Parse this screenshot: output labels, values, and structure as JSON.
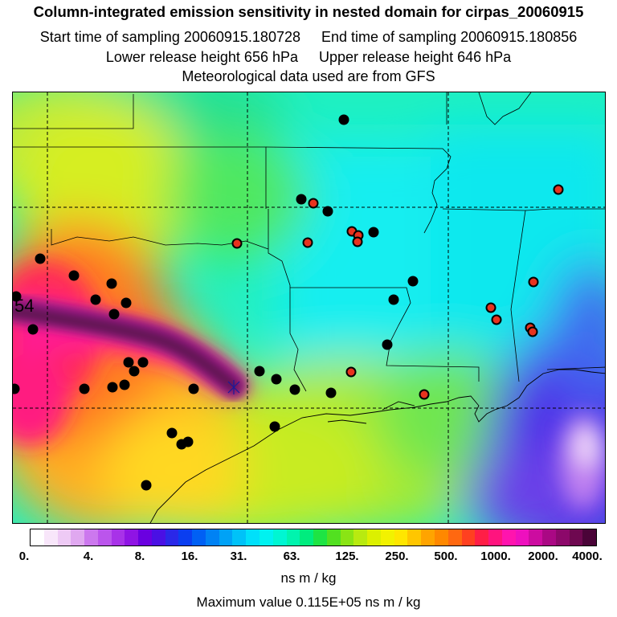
{
  "header": {
    "title": "Column-integrated emission sensitivity in nested domain for cirpas_20060915",
    "start_sampling": "Start time of sampling 20060915.180728",
    "end_sampling": "End time of sampling 20060915.180856",
    "lower_release": "Lower release height  656 hPa",
    "upper_release": "Upper release height  646 hPa",
    "met_data": "Meteorological data used are from GFS"
  },
  "map": {
    "trajectory_label": "54",
    "colors": {
      "trajectory": "#6a1a5a",
      "release_marker": "#000080",
      "black_dot": "#000000",
      "red_dot": "#e8321e",
      "lines": "#000000"
    }
  },
  "colorbar": {
    "tick_labels": [
      "0.",
      "4.",
      "8.",
      "16.",
      "31.",
      "63.",
      "125.",
      "250.",
      "500.",
      "1000.",
      "2000.",
      "4000."
    ],
    "colors": [
      "#ffffff",
      "#f8e6fa",
      "#eecaf5",
      "#e0a8f0",
      "#cc78ee",
      "#bb55ec",
      "#a832e8",
      "#8f14e4",
      "#6a00e0",
      "#4a10e4",
      "#2a28e8",
      "#0a3ef0",
      "#0060f4",
      "#0082f4",
      "#00a2f6",
      "#00c2f8",
      "#00e0fa",
      "#00f2f0",
      "#00f6d2",
      "#00f4ae",
      "#00ec7e",
      "#1ee444",
      "#52e020",
      "#8ae414",
      "#b8ea10",
      "#dcf000",
      "#f2f200",
      "#ffe600",
      "#ffc600",
      "#ffa400",
      "#ff8800",
      "#ff6810",
      "#ff4020",
      "#ff1e46",
      "#ff147e",
      "#ff14ae",
      "#ee10be",
      "#cc0ca0",
      "#aa0884",
      "#8c086a",
      "#6e0850",
      "#4a0438"
    ],
    "units": "ns m / kg",
    "max_value": "Maximum value  0.115E+05 ns m / kg"
  }
}
